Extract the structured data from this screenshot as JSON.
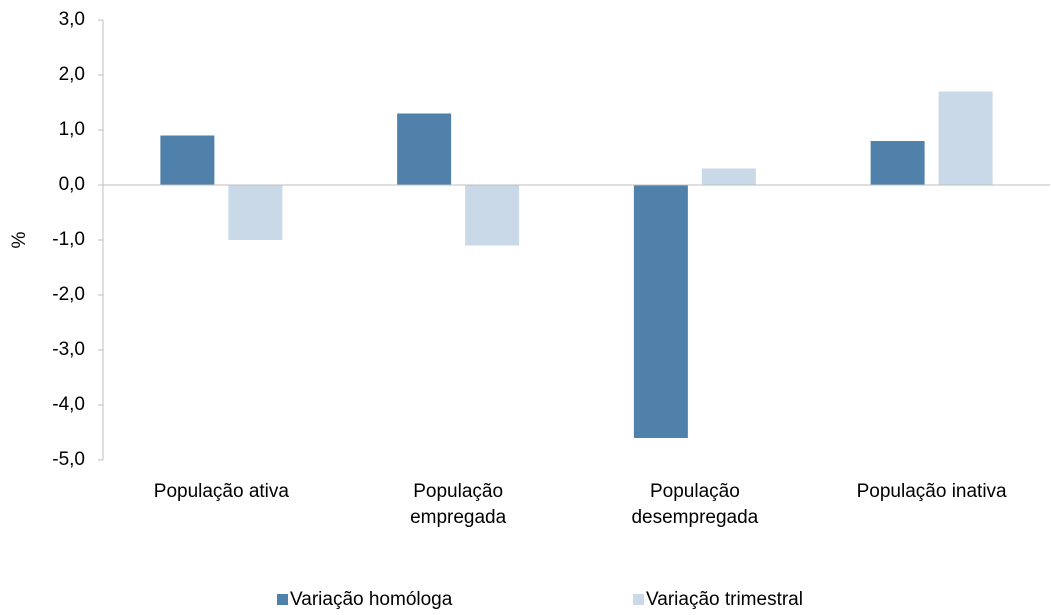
{
  "chart_data": {
    "type": "bar",
    "ylabel": "%",
    "categories": [
      "População ativa",
      "População empregada",
      "População desempregada",
      "População inativa"
    ],
    "series": [
      {
        "name": "Variação homóloga",
        "color": "#5081aa",
        "values": [
          0.9,
          1.3,
          -4.6,
          0.8
        ]
      },
      {
        "name": "Variação trimestral",
        "color": "#c9d9e7",
        "values": [
          -1.0,
          -1.1,
          0.3,
          1.7
        ]
      }
    ],
    "ylim": [
      -5,
      3
    ],
    "yticks": [
      {
        "value": -5,
        "label": "-5,0"
      },
      {
        "value": -4,
        "label": "-4,0"
      },
      {
        "value": -3,
        "label": "-3,0"
      },
      {
        "value": -2,
        "label": "-2,0"
      },
      {
        "value": -1,
        "label": "-1,0"
      },
      {
        "value": 0,
        "label": "0,0"
      },
      {
        "value": 1,
        "label": "1,0"
      },
      {
        "value": 2,
        "label": "2,0"
      },
      {
        "value": 3,
        "label": "3,0"
      }
    ],
    "legend": "bottom",
    "grid": false
  }
}
